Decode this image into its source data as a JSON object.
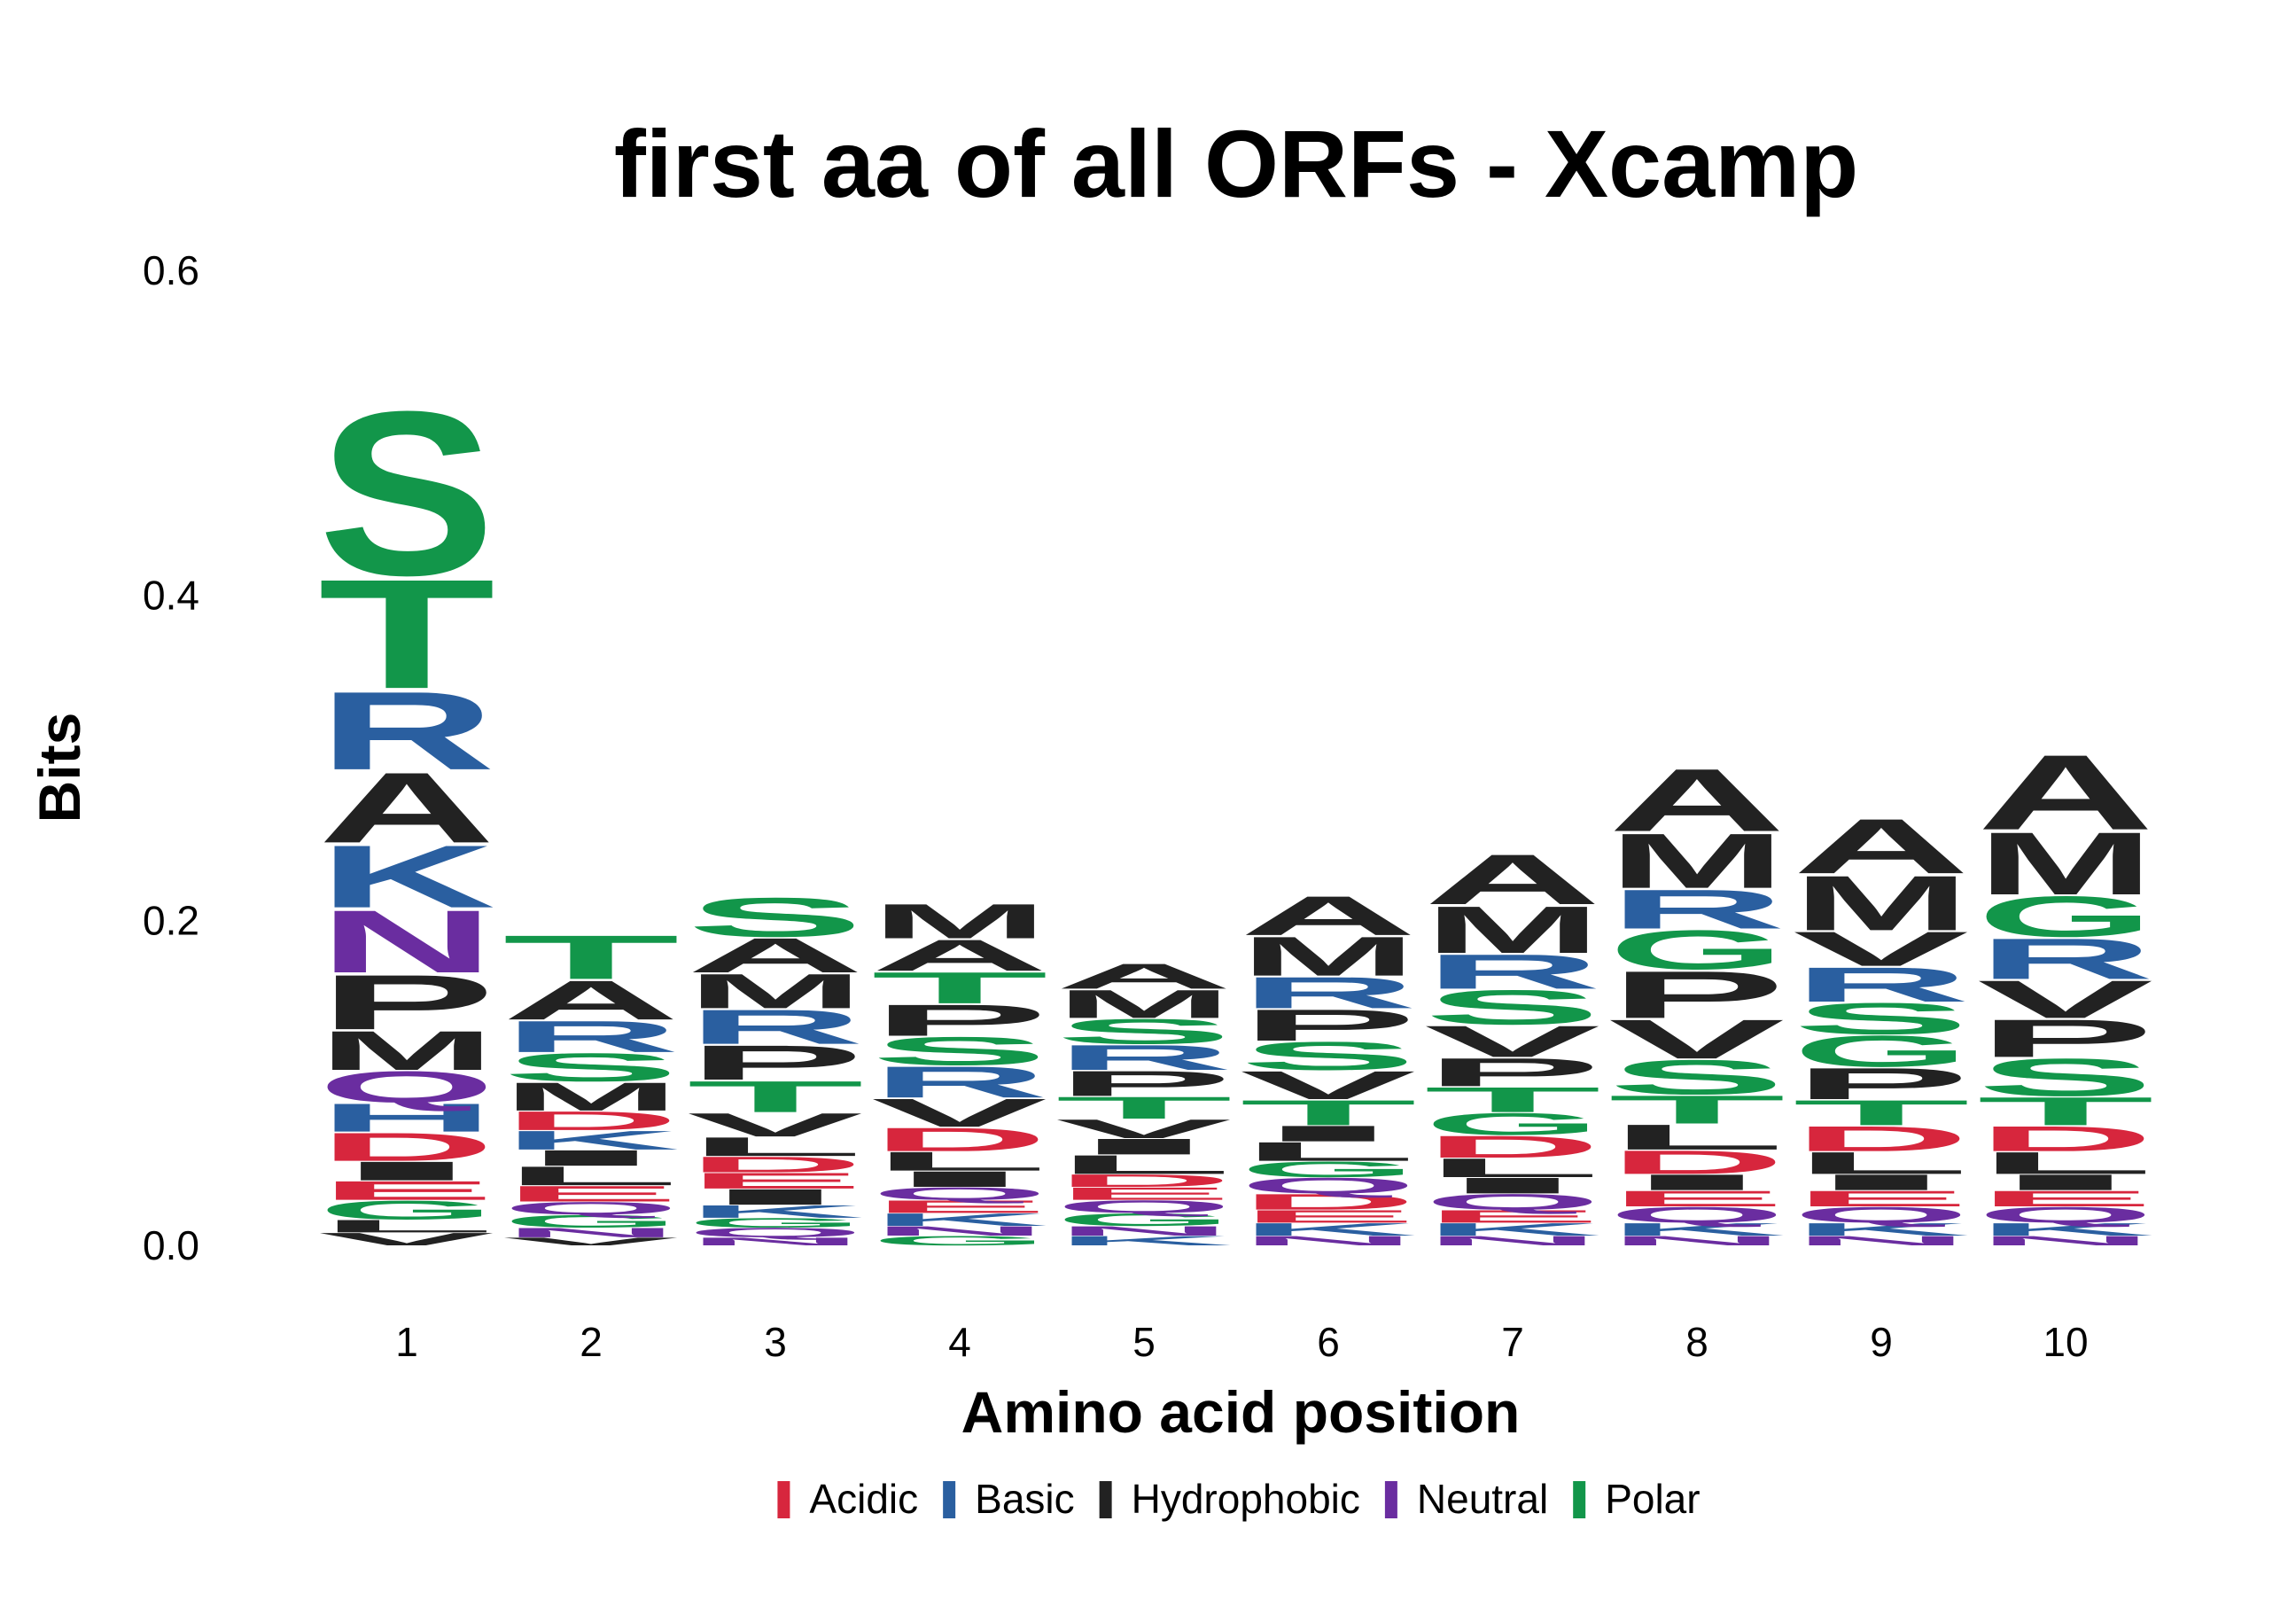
{
  "chart_data": {
    "type": "sequence-logo",
    "title": "first aa of all ORFs - Xcamp",
    "xlabel": "Amino acid position",
    "ylabel": "Bits",
    "ylim": [
      0,
      0.6
    ],
    "yticks": [
      "0.0",
      "0.2",
      "0.4",
      "0.6"
    ],
    "ytick_values": [
      0,
      0.2,
      0.4,
      0.6
    ],
    "grid": false,
    "legend_position": "bottom",
    "classes": [
      {
        "name": "Acidic",
        "color": "#d7263d"
      },
      {
        "name": "Basic",
        "color": "#2a5fa0"
      },
      {
        "name": "Hydrophobic",
        "color": "#222222"
      },
      {
        "name": "Neutral",
        "color": "#6a2da0"
      },
      {
        "name": "Polar",
        "color": "#12964a"
      }
    ],
    "residue_class": {
      "D": "Acidic",
      "E": "Acidic",
      "H": "Basic",
      "K": "Basic",
      "R": "Basic",
      "A": "Hydrophobic",
      "F": "Hydrophobic",
      "I": "Hydrophobic",
      "L": "Hydrophobic",
      "M": "Hydrophobic",
      "P": "Hydrophobic",
      "V": "Hydrophobic",
      "W": "Hydrophobic",
      "N": "Neutral",
      "Q": "Neutral",
      "C": "Polar",
      "G": "Polar",
      "S": "Polar",
      "T": "Polar",
      "Y": "Polar"
    },
    "positions": [
      {
        "position": "1",
        "letters": [
          {
            "aa": "V",
            "bits": 0.008
          },
          {
            "aa": "L",
            "bits": 0.008
          },
          {
            "aa": "G",
            "bits": 0.012
          },
          {
            "aa": "E",
            "bits": 0.012
          },
          {
            "aa": "I",
            "bits": 0.012
          },
          {
            "aa": "D",
            "bits": 0.018
          },
          {
            "aa": "H",
            "bits": 0.018
          },
          {
            "aa": "Q",
            "bits": 0.02
          },
          {
            "aa": "M",
            "bits": 0.025
          },
          {
            "aa": "P",
            "bits": 0.035
          },
          {
            "aa": "N",
            "bits": 0.04
          },
          {
            "aa": "K",
            "bits": 0.04
          },
          {
            "aa": "A",
            "bits": 0.045
          },
          {
            "aa": "R",
            "bits": 0.05
          },
          {
            "aa": "T",
            "bits": 0.07
          },
          {
            "aa": "S",
            "bits": 0.105
          }
        ]
      },
      {
        "position": "2",
        "letters": [
          {
            "aa": "V",
            "bits": 0.005
          },
          {
            "aa": "N",
            "bits": 0.006
          },
          {
            "aa": "G",
            "bits": 0.008
          },
          {
            "aa": "Q",
            "bits": 0.008
          },
          {
            "aa": "E",
            "bits": 0.01
          },
          {
            "aa": "L",
            "bits": 0.012
          },
          {
            "aa": "I",
            "bits": 0.01
          },
          {
            "aa": "K",
            "bits": 0.012
          },
          {
            "aa": "D",
            "bits": 0.012
          },
          {
            "aa": "M",
            "bits": 0.018
          },
          {
            "aa": "S",
            "bits": 0.018
          },
          {
            "aa": "R",
            "bits": 0.02
          },
          {
            "aa": "A",
            "bits": 0.025
          },
          {
            "aa": "T",
            "bits": 0.028
          }
        ]
      },
      {
        "position": "3",
        "letters": [
          {
            "aa": "N",
            "bits": 0.005
          },
          {
            "aa": "Q",
            "bits": 0.006
          },
          {
            "aa": "G",
            "bits": 0.006
          },
          {
            "aa": "K",
            "bits": 0.008
          },
          {
            "aa": "I",
            "bits": 0.01
          },
          {
            "aa": "E",
            "bits": 0.01
          },
          {
            "aa": "D",
            "bits": 0.01
          },
          {
            "aa": "L",
            "bits": 0.012
          },
          {
            "aa": "V",
            "bits": 0.015
          },
          {
            "aa": "T",
            "bits": 0.02
          },
          {
            "aa": "P",
            "bits": 0.022
          },
          {
            "aa": "R",
            "bits": 0.022
          },
          {
            "aa": "M",
            "bits": 0.022
          },
          {
            "aa": "A",
            "bits": 0.022
          },
          {
            "aa": "S",
            "bits": 0.025
          }
        ]
      },
      {
        "position": "4",
        "letters": [
          {
            "aa": "G",
            "bits": 0.006
          },
          {
            "aa": "N",
            "bits": 0.006
          },
          {
            "aa": "K",
            "bits": 0.008
          },
          {
            "aa": "E",
            "bits": 0.008
          },
          {
            "aa": "Q",
            "bits": 0.008
          },
          {
            "aa": "I",
            "bits": 0.01
          },
          {
            "aa": "L",
            "bits": 0.012
          },
          {
            "aa": "D",
            "bits": 0.015
          },
          {
            "aa": "V",
            "bits": 0.018
          },
          {
            "aa": "R",
            "bits": 0.02
          },
          {
            "aa": "S",
            "bits": 0.018
          },
          {
            "aa": "P",
            "bits": 0.02
          },
          {
            "aa": "T",
            "bits": 0.02
          },
          {
            "aa": "A",
            "bits": 0.02
          },
          {
            "aa": "M",
            "bits": 0.022
          }
        ]
      },
      {
        "position": "5",
        "letters": [
          {
            "aa": "K",
            "bits": 0.006
          },
          {
            "aa": "N",
            "bits": 0.006
          },
          {
            "aa": "G",
            "bits": 0.008
          },
          {
            "aa": "Q",
            "bits": 0.008
          },
          {
            "aa": "E",
            "bits": 0.008
          },
          {
            "aa": "D",
            "bits": 0.008
          },
          {
            "aa": "L",
            "bits": 0.012
          },
          {
            "aa": "I",
            "bits": 0.01
          },
          {
            "aa": "V",
            "bits": 0.012
          },
          {
            "aa": "T",
            "bits": 0.014
          },
          {
            "aa": "P",
            "bits": 0.016
          },
          {
            "aa": "R",
            "bits": 0.016
          },
          {
            "aa": "S",
            "bits": 0.016
          },
          {
            "aa": "M",
            "bits": 0.018
          },
          {
            "aa": "A",
            "bits": 0.016
          }
        ]
      },
      {
        "position": "6",
        "letters": [
          {
            "aa": "N",
            "bits": 0.006
          },
          {
            "aa": "K",
            "bits": 0.008
          },
          {
            "aa": "E",
            "bits": 0.008
          },
          {
            "aa": "D",
            "bits": 0.01
          },
          {
            "aa": "Q",
            "bits": 0.01
          },
          {
            "aa": "G",
            "bits": 0.01
          },
          {
            "aa": "L",
            "bits": 0.012
          },
          {
            "aa": "I",
            "bits": 0.01
          },
          {
            "aa": "T",
            "bits": 0.016
          },
          {
            "aa": "V",
            "bits": 0.018
          },
          {
            "aa": "S",
            "bits": 0.018
          },
          {
            "aa": "P",
            "bits": 0.02
          },
          {
            "aa": "R",
            "bits": 0.02
          },
          {
            "aa": "M",
            "bits": 0.025
          },
          {
            "aa": "A",
            "bits": 0.025
          }
        ]
      },
      {
        "position": "7",
        "letters": [
          {
            "aa": "N",
            "bits": 0.006
          },
          {
            "aa": "K",
            "bits": 0.008
          },
          {
            "aa": "E",
            "bits": 0.008
          },
          {
            "aa": "Q",
            "bits": 0.01
          },
          {
            "aa": "I",
            "bits": 0.01
          },
          {
            "aa": "L",
            "bits": 0.012
          },
          {
            "aa": "D",
            "bits": 0.014
          },
          {
            "aa": "G",
            "bits": 0.014
          },
          {
            "aa": "T",
            "bits": 0.016
          },
          {
            "aa": "P",
            "bits": 0.018
          },
          {
            "aa": "V",
            "bits": 0.02
          },
          {
            "aa": "S",
            "bits": 0.022
          },
          {
            "aa": "R",
            "bits": 0.022
          },
          {
            "aa": "M",
            "bits": 0.03
          },
          {
            "aa": "A",
            "bits": 0.032
          }
        ]
      },
      {
        "position": "8",
        "letters": [
          {
            "aa": "N",
            "bits": 0.006
          },
          {
            "aa": "K",
            "bits": 0.008
          },
          {
            "aa": "Q",
            "bits": 0.01
          },
          {
            "aa": "E",
            "bits": 0.01
          },
          {
            "aa": "I",
            "bits": 0.01
          },
          {
            "aa": "D",
            "bits": 0.015
          },
          {
            "aa": "L",
            "bits": 0.016
          },
          {
            "aa": "T",
            "bits": 0.018
          },
          {
            "aa": "S",
            "bits": 0.022
          },
          {
            "aa": "V",
            "bits": 0.025
          },
          {
            "aa": "P",
            "bits": 0.03
          },
          {
            "aa": "G",
            "bits": 0.025
          },
          {
            "aa": "R",
            "bits": 0.025
          },
          {
            "aa": "M",
            "bits": 0.035
          },
          {
            "aa": "A",
            "bits": 0.04
          }
        ]
      },
      {
        "position": "9",
        "letters": [
          {
            "aa": "N",
            "bits": 0.006
          },
          {
            "aa": "K",
            "bits": 0.008
          },
          {
            "aa": "Q",
            "bits": 0.01
          },
          {
            "aa": "E",
            "bits": 0.01
          },
          {
            "aa": "I",
            "bits": 0.01
          },
          {
            "aa": "L",
            "bits": 0.014
          },
          {
            "aa": "D",
            "bits": 0.016
          },
          {
            "aa": "T",
            "bits": 0.016
          },
          {
            "aa": "P",
            "bits": 0.02
          },
          {
            "aa": "G",
            "bits": 0.02
          },
          {
            "aa": "S",
            "bits": 0.02
          },
          {
            "aa": "R",
            "bits": 0.022
          },
          {
            "aa": "V",
            "bits": 0.022
          },
          {
            "aa": "M",
            "bits": 0.035
          },
          {
            "aa": "A",
            "bits": 0.035
          }
        ]
      },
      {
        "position": "10",
        "letters": [
          {
            "aa": "N",
            "bits": 0.006
          },
          {
            "aa": "K",
            "bits": 0.008
          },
          {
            "aa": "Q",
            "bits": 0.01
          },
          {
            "aa": "E",
            "bits": 0.01
          },
          {
            "aa": "I",
            "bits": 0.01
          },
          {
            "aa": "L",
            "bits": 0.014
          },
          {
            "aa": "D",
            "bits": 0.016
          },
          {
            "aa": "T",
            "bits": 0.018
          },
          {
            "aa": "S",
            "bits": 0.024
          },
          {
            "aa": "P",
            "bits": 0.024
          },
          {
            "aa": "V",
            "bits": 0.024
          },
          {
            "aa": "R",
            "bits": 0.026
          },
          {
            "aa": "G",
            "bits": 0.026
          },
          {
            "aa": "M",
            "bits": 0.04
          },
          {
            "aa": "A",
            "bits": 0.048
          }
        ]
      }
    ]
  }
}
